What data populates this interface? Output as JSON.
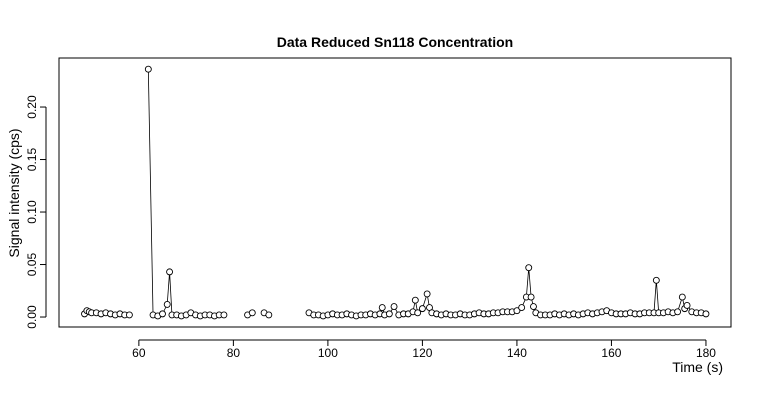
{
  "chart_data": {
    "type": "line",
    "title": "Data Reduced Sn118 Concentration",
    "x_label": "Time (s)",
    "y_label": "Signal intensity (cps)",
    "xlim": [
      43.1,
      185.3
    ],
    "ylim": [
      -0.0095,
      0.2467
    ],
    "xticks": [
      60,
      80,
      100,
      120,
      140,
      160,
      180
    ],
    "yticks": [
      {
        "value": 0,
        "label": "0.00"
      },
      {
        "value": 0.05,
        "label": "0.05"
      },
      {
        "value": 0.1,
        "label": "0.10"
      },
      {
        "value": 0.15,
        "label": "0.15"
      },
      {
        "value": 0.2,
        "label": "0.20"
      }
    ],
    "color": "#000000",
    "x": [
      48.5,
      49,
      49.5,
      50,
      51,
      52,
      53,
      54,
      55,
      56,
      57,
      58,
      null,
      62,
      63,
      64,
      65,
      66,
      66.5,
      67,
      68,
      69,
      70,
      71,
      72,
      73,
      74,
      75,
      76,
      77,
      78,
      null,
      83,
      84,
      null,
      86.5,
      87.5,
      null,
      96,
      97,
      98,
      99,
      100,
      101,
      102,
      103,
      104,
      105,
      106,
      107,
      108,
      109,
      110,
      111,
      111.5,
      112,
      113,
      114,
      115,
      116,
      117,
      118,
      118.5,
      119,
      120,
      121,
      121.5,
      122,
      123,
      124,
      125,
      126,
      127,
      128,
      129,
      130,
      131,
      132,
      133,
      134,
      135,
      136,
      137,
      138,
      139,
      140,
      141,
      142,
      142.5,
      143,
      143.5,
      144,
      145,
      146,
      147,
      148,
      149,
      150,
      151,
      152,
      153,
      154,
      155,
      156,
      157,
      158,
      159,
      160,
      161,
      162,
      163,
      164,
      165,
      166,
      167,
      168,
      169,
      169.5,
      170,
      171,
      172,
      173,
      174,
      175,
      175.5,
      176,
      177,
      178,
      179,
      180
    ],
    "values": [
      0.003,
      0.006,
      0.005,
      0.004,
      0.004,
      0.003,
      0.004,
      0.003,
      0.002,
      0.003,
      0.002,
      0.002,
      null,
      0.236,
      0.002,
      0.001,
      0.003,
      0.012,
      0.043,
      0.002,
      0.002,
      0.001,
      0.002,
      0.004,
      0.002,
      0.001,
      0.002,
      0.002,
      0.001,
      0.002,
      0.002,
      null,
      0.002,
      0.004,
      null,
      0.004,
      0.002,
      null,
      0.004,
      0.002,
      0.002,
      0.001,
      0.002,
      0.003,
      0.002,
      0.002,
      0.003,
      0.002,
      0.001,
      0.002,
      0.002,
      0.003,
      0.002,
      0.003,
      0.009,
      0.002,
      0.003,
      0.01,
      0.002,
      0.003,
      0.003,
      0.005,
      0.016,
      0.004,
      0.008,
      0.022,
      0.009,
      0.004,
      0.003,
      0.002,
      0.003,
      0.002,
      0.002,
      0.003,
      0.002,
      0.002,
      0.003,
      0.004,
      0.003,
      0.003,
      0.004,
      0.004,
      0.005,
      0.005,
      0.005,
      0.006,
      0.009,
      0.019,
      0.047,
      0.019,
      0.01,
      0.004,
      0.002,
      0.002,
      0.002,
      0.003,
      0.002,
      0.003,
      0.002,
      0.003,
      0.002,
      0.003,
      0.004,
      0.003,
      0.004,
      0.005,
      0.006,
      0.004,
      0.003,
      0.003,
      0.003,
      0.004,
      0.003,
      0.003,
      0.004,
      0.004,
      0.004,
      0.035,
      0.004,
      0.004,
      0.005,
      0.004,
      0.005,
      0.019,
      0.008,
      0.011,
      0.005,
      0.004,
      0.004,
      0.003
    ]
  }
}
